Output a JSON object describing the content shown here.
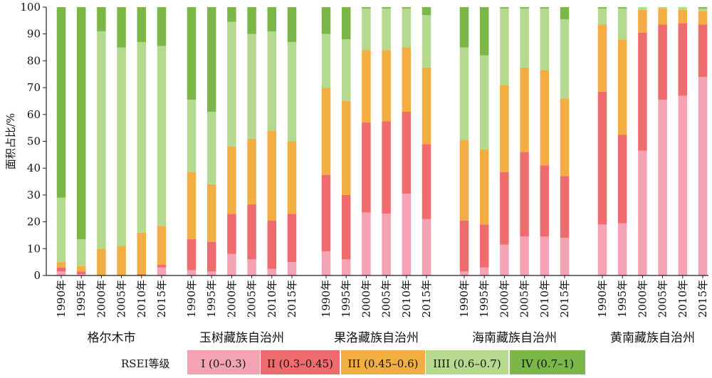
{
  "chart_data": {
    "type": "bar",
    "stacked": true,
    "ylabel": "面积占比/%",
    "ylim": [
      0,
      100
    ],
    "yticks": [
      0,
      10,
      20,
      30,
      40,
      50,
      60,
      70,
      80,
      90,
      100
    ],
    "years": [
      "1990年",
      "1995年",
      "2000年",
      "2005年",
      "2010年",
      "2015年"
    ],
    "groups": [
      {
        "name": "格尔木市",
        "values": [
          [
            1.5,
            1.5,
            2,
            24,
            71
          ],
          [
            0.5,
            1,
            2,
            10,
            86.5
          ],
          [
            0,
            0,
            10,
            81,
            9
          ],
          [
            0,
            0,
            11,
            74,
            15
          ],
          [
            0,
            0.5,
            15.5,
            71,
            13
          ],
          [
            3,
            1,
            14.5,
            67,
            14.5
          ]
        ]
      },
      {
        "name": "玉树藏族自治州",
        "values": [
          [
            2,
            11.5,
            25,
            27,
            34.5
          ],
          [
            1.5,
            11,
            21.5,
            27,
            39
          ],
          [
            8,
            15,
            25,
            46.5,
            5.5
          ],
          [
            6,
            20.5,
            24.5,
            39,
            10
          ],
          [
            2.5,
            18,
            33.5,
            37,
            9
          ],
          [
            5,
            18,
            27,
            37,
            13
          ]
        ]
      },
      {
        "name": "果洛藏族自治州",
        "values": [
          [
            9,
            28.5,
            32.5,
            20,
            10
          ],
          [
            6,
            24,
            35,
            23,
            12
          ],
          [
            23.5,
            33.5,
            27,
            15.5,
            0.5
          ],
          [
            23,
            34.5,
            26.5,
            15.5,
            0.5
          ],
          [
            30.5,
            30.5,
            24,
            14.5,
            0.5
          ],
          [
            21,
            28,
            28.5,
            19.5,
            3
          ]
        ]
      },
      {
        "name": "海南藏族自治州",
        "values": [
          [
            1.5,
            19,
            30,
            34.5,
            15
          ],
          [
            3,
            16,
            28,
            35,
            18
          ],
          [
            11.5,
            27,
            32.5,
            28.5,
            0.5
          ],
          [
            14.5,
            31.5,
            31.5,
            22,
            0.5
          ],
          [
            14.5,
            26.5,
            35.5,
            23,
            0.5
          ],
          [
            14,
            23,
            29,
            29.5,
            4.5
          ]
        ]
      },
      {
        "name": "黄南藏族自治州",
        "values": [
          [
            19,
            49.5,
            25,
            6,
            0.5
          ],
          [
            19.5,
            33,
            35.5,
            11.5,
            0.5
          ],
          [
            46.5,
            44,
            8.5,
            1,
            0
          ],
          [
            65.5,
            28,
            6,
            0.5,
            0
          ],
          [
            67,
            27,
            5,
            1,
            0
          ],
          [
            74,
            19.5,
            5,
            1,
            0.5
          ]
        ]
      }
    ],
    "series": [
      {
        "name": "I (0–0.3)",
        "color": "#f4a3b5"
      },
      {
        "name": "II (0.3–0.45)",
        "color": "#ee6b6e"
      },
      {
        "name": "III (0.45–0.6)",
        "color": "#f3ae43"
      },
      {
        "name": "IIII (0.6–0.7)",
        "color": "#b5d98e"
      },
      {
        "name": "IV (0.7–1)",
        "color": "#7ab648"
      }
    ],
    "legend": {
      "title": "RSEI等级",
      "placement": "bottom"
    }
  }
}
